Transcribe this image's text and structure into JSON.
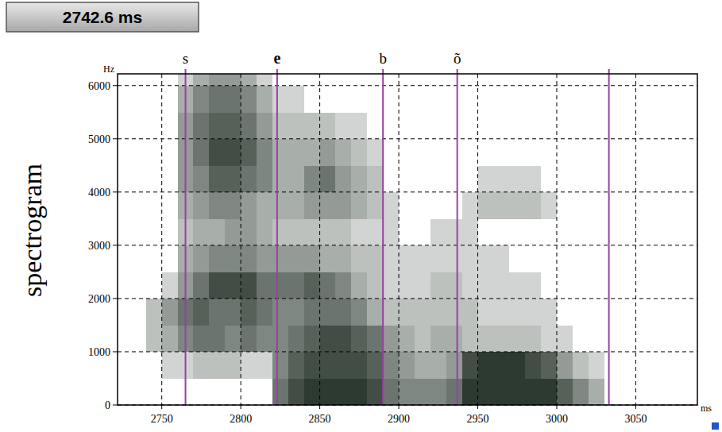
{
  "chart_data": {
    "type": "heatmap",
    "title": "spectrogram",
    "cursor_label": "2742.6 ms",
    "y_label": "Hz",
    "x_label": "ms",
    "xlim": [
      2722,
      3089
    ],
    "ylim": [
      0,
      6220
    ],
    "xticks": [
      2750,
      2800,
      2850,
      2900,
      2950,
      3000,
      3050
    ],
    "yticks": [
      0,
      1000,
      2000,
      3000,
      4000,
      5000,
      6000
    ],
    "grid": true,
    "boundaries": [
      2765,
      2823,
      2890,
      2937,
      3033
    ],
    "segment_labels": [
      "s",
      "e",
      "b",
      "õ"
    ],
    "time_bins": [
      2740,
      2750,
      2760,
      2770,
      2780,
      2790,
      2800,
      2810,
      2820,
      2830,
      2840,
      2850,
      2860,
      2870,
      2880,
      2890,
      2900,
      2910,
      2920,
      2930,
      2940,
      2950,
      2960,
      2970,
      2980,
      2990,
      3000,
      3010,
      3020,
      3030
    ],
    "freq_bins": [
      0,
      500,
      1000,
      1500,
      2000,
      2500,
      3000,
      3500,
      4000,
      4500,
      5000,
      5500,
      6000,
      6500
    ],
    "intensity_range": [
      0,
      9
    ],
    "cells": [
      [
        0,
        0,
        2,
        2,
        0,
        0,
        0,
        0,
        0,
        0,
        0,
        0,
        0
      ],
      [
        0,
        1,
        3,
        4,
        1,
        0,
        0,
        0,
        0,
        0,
        0,
        0,
        0
      ],
      [
        0,
        1,
        5,
        6,
        4,
        3,
        2,
        3,
        4,
        4,
        4,
        3,
        1
      ],
      [
        0,
        2,
        6,
        7,
        6,
        4,
        3,
        4,
        5,
        6,
        6,
        5,
        3
      ],
      [
        0,
        2,
        6,
        6,
        8,
        5,
        3,
        5,
        7,
        8,
        7,
        6,
        4
      ],
      [
        0,
        2,
        5,
        6,
        8,
        5,
        4,
        5,
        7,
        8,
        7,
        6,
        4
      ],
      [
        0,
        1,
        6,
        7,
        8,
        5,
        4,
        4,
        6,
        7,
        6,
        5,
        3
      ],
      [
        0,
        1,
        5,
        6,
        6,
        4,
        3,
        3,
        5,
        5,
        4,
        3,
        1
      ],
      [
        6,
        5,
        5,
        5,
        6,
        4,
        2,
        3,
        3,
        3,
        2,
        1,
        0
      ],
      [
        8,
        7,
        6,
        5,
        6,
        4,
        2,
        3,
        3,
        3,
        2,
        1,
        0
      ],
      [
        9,
        8,
        7,
        6,
        7,
        4,
        2,
        4,
        5,
        3,
        2,
        0,
        0
      ],
      [
        9,
        8,
        8,
        6,
        6,
        3,
        2,
        4,
        6,
        4,
        2,
        0,
        0
      ],
      [
        9,
        8,
        8,
        6,
        5,
        3,
        2,
        4,
        4,
        3,
        1,
        0,
        0
      ],
      [
        9,
        8,
        7,
        5,
        3,
        2,
        1,
        3,
        3,
        2,
        1,
        0,
        0
      ],
      [
        8,
        7,
        6,
        3,
        2,
        2,
        1,
        2,
        2,
        1,
        0,
        0,
        0
      ],
      [
        6,
        5,
        4,
        2,
        1,
        1,
        1,
        1,
        0,
        0,
        0,
        0,
        0
      ],
      [
        5,
        4,
        3,
        2,
        1,
        1,
        0,
        0,
        0,
        0,
        0,
        0,
        0
      ],
      [
        5,
        3,
        2,
        2,
        1,
        1,
        0,
        0,
        0,
        0,
        0,
        0,
        0
      ],
      [
        5,
        3,
        3,
        2,
        2,
        1,
        1,
        0,
        0,
        0,
        0,
        0,
        0
      ],
      [
        6,
        4,
        3,
        2,
        2,
        1,
        1,
        0,
        0,
        0,
        0,
        0,
        0
      ],
      [
        9,
        8,
        2,
        2,
        1,
        1,
        1,
        1,
        0,
        0,
        0,
        0,
        0
      ],
      [
        9,
        9,
        2,
        1,
        1,
        1,
        0,
        2,
        1,
        0,
        0,
        0,
        0
      ],
      [
        9,
        9,
        2,
        1,
        1,
        1,
        0,
        2,
        1,
        0,
        0,
        0,
        0
      ],
      [
        9,
        9,
        2,
        1,
        1,
        0,
        0,
        2,
        1,
        0,
        0,
        0,
        0
      ],
      [
        9,
        8,
        2,
        1,
        1,
        0,
        0,
        2,
        1,
        0,
        0,
        0,
        0
      ],
      [
        9,
        7,
        1,
        1,
        0,
        0,
        0,
        1,
        0,
        0,
        0,
        0,
        0
      ],
      [
        7,
        4,
        1,
        0,
        0,
        0,
        0,
        0,
        0,
        0,
        0,
        0,
        0
      ],
      [
        5,
        2,
        0,
        0,
        0,
        0,
        0,
        0,
        0,
        0,
        0,
        0,
        0
      ],
      [
        3,
        1,
        0,
        0,
        0,
        0,
        0,
        0,
        0,
        0,
        0,
        0,
        0
      ]
    ]
  }
}
